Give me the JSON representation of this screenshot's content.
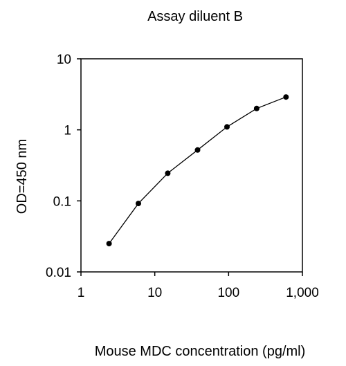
{
  "chart_data": {
    "type": "line",
    "title": "Assay diluent B",
    "xlabel": "Mouse MDC concentration (pg/ml)",
    "ylabel": "OD=450 nm",
    "x_scale": "log",
    "y_scale": "log",
    "xlim": [
      1,
      1000
    ],
    "ylim": [
      0.01,
      10
    ],
    "x_ticks": [
      {
        "value": 1,
        "label": "1"
      },
      {
        "value": 10,
        "label": "10"
      },
      {
        "value": 100,
        "label": "100"
      },
      {
        "value": 1000,
        "label": "1,000"
      }
    ],
    "y_ticks": [
      {
        "value": 0.01,
        "label": "0.01"
      },
      {
        "value": 0.1,
        "label": "0.1"
      },
      {
        "value": 1,
        "label": "1"
      },
      {
        "value": 10,
        "label": "10"
      }
    ],
    "grid": false,
    "legend": "none",
    "series": [
      {
        "x": [
          2.4,
          6,
          15,
          38,
          95,
          240,
          600
        ],
        "y": [
          0.025,
          0.092,
          0.245,
          0.52,
          1.1,
          2.0,
          2.9
        ]
      }
    ],
    "colors": {
      "line": "#000000",
      "marker": "#000000",
      "axis": "#000000"
    }
  }
}
